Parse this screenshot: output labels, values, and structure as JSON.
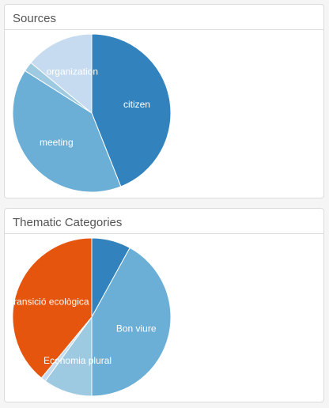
{
  "panels": [
    {
      "title": "Sources"
    },
    {
      "title": "Thematic Categories"
    }
  ],
  "chart_data": [
    {
      "type": "pie",
      "title": "Sources",
      "slices": [
        {
          "label": "citizen",
          "value": 44,
          "color": "#3182bd"
        },
        {
          "label": "meeting",
          "value": 40,
          "color": "#6baed6"
        },
        {
          "label": "",
          "value": 2,
          "color": "#9ecae1"
        },
        {
          "label": "organization",
          "value": 14,
          "color": "#c6dbef"
        }
      ]
    },
    {
      "type": "pie",
      "title": "Thematic Categories",
      "slices": [
        {
          "label": "",
          "value": 8,
          "color": "#3182bd"
        },
        {
          "label": "Bon viure",
          "value": 42,
          "color": "#6baed6"
        },
        {
          "label": "Economia plural",
          "value": 10,
          "color": "#9ecae1"
        },
        {
          "label": "",
          "value": 1,
          "color": "#c6dbef"
        },
        {
          "label": "Transició ecològica",
          "value": 39,
          "color": "#e6550d"
        }
      ]
    }
  ]
}
